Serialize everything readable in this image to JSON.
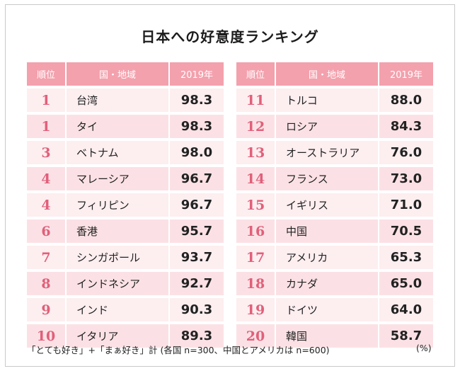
{
  "title": "日本への好意度ランキング",
  "headers": {
    "rank": "順位",
    "country": "国・地域",
    "year": "2019年"
  },
  "left_rows": [
    {
      "rank": "1",
      "country": "台湾",
      "score": "98.3"
    },
    {
      "rank": "1",
      "country": "タイ",
      "score": "98.3"
    },
    {
      "rank": "3",
      "country": "ベトナム",
      "score": "98.0"
    },
    {
      "rank": "4",
      "country": "マレーシア",
      "score": "96.7"
    },
    {
      "rank": "4",
      "country": "フィリピン",
      "score": "96.7"
    },
    {
      "rank": "6",
      "country": "香港",
      "score": "95.7"
    },
    {
      "rank": "7",
      "country": "シンガポール",
      "score": "93.7"
    },
    {
      "rank": "8",
      "country": "インドネシア",
      "score": "92.7"
    },
    {
      "rank": "9",
      "country": "インド",
      "score": "90.3"
    },
    {
      "rank": "10",
      "country": "イタリア",
      "score": "89.3"
    }
  ],
  "right_rows": [
    {
      "rank": "11",
      "country": "トルコ",
      "score": "88.0"
    },
    {
      "rank": "12",
      "country": "ロシア",
      "score": "84.3"
    },
    {
      "rank": "13",
      "country": "オーストラリア",
      "score": "76.0"
    },
    {
      "rank": "14",
      "country": "フランス",
      "score": "73.0"
    },
    {
      "rank": "15",
      "country": "イギリス",
      "score": "71.0"
    },
    {
      "rank": "16",
      "country": "中国",
      "score": "70.5"
    },
    {
      "rank": "17",
      "country": "アメリカ",
      "score": "65.3"
    },
    {
      "rank": "18",
      "country": "カナダ",
      "score": "65.0"
    },
    {
      "rank": "19",
      "country": "ドイツ",
      "score": "64.0"
    },
    {
      "rank": "20",
      "country": "韓国",
      "score": "58.7"
    }
  ],
  "footnote": "「とても好き」+「まぁ好き」計 (各国 n=300、中国とアメリカは n=600)",
  "unit": "(%)",
  "colors": {
    "header": "#f3a1ad",
    "row": "#fdeef0",
    "row_alt": "#fbe1e5",
    "rank_text": "#e0607a"
  }
}
